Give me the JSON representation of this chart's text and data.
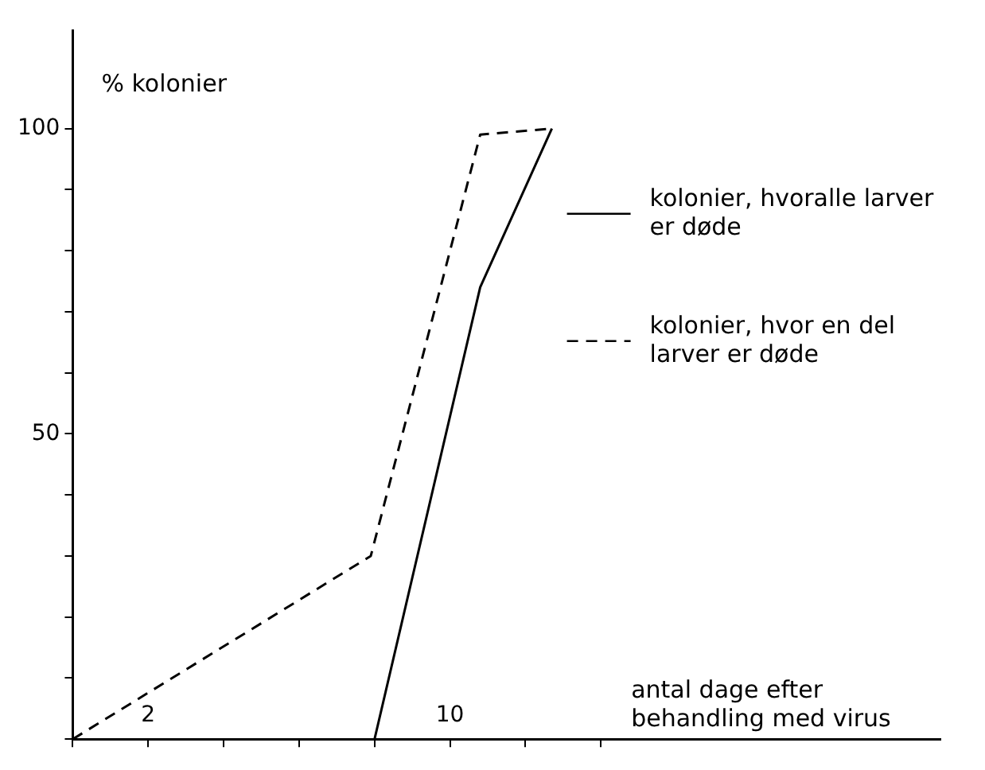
{
  "chart_data": {
    "type": "line",
    "xlabel": "antal dage efter behandling med virus",
    "ylabel": "% kolonier",
    "xlim": [
      0,
      23
    ],
    "xticks": [
      {
        "value": 0,
        "label": null
      },
      {
        "value": 2,
        "label": "2"
      },
      {
        "value": 4,
        "label": null
      },
      {
        "value": 6,
        "label": null
      },
      {
        "value": 8,
        "label": null
      },
      {
        "value": 10,
        "label": "10"
      },
      {
        "value": 12,
        "label": null
      },
      {
        "value": 14,
        "label": null
      }
    ],
    "ylim": [
      0,
      116
    ],
    "yticks": [
      {
        "value": 0,
        "label": null
      },
      {
        "value": 10,
        "label": null
      },
      {
        "value": 20,
        "label": null
      },
      {
        "value": 30,
        "label": null
      },
      {
        "value": 40,
        "label": null
      },
      50,
      {
        "value": 60,
        "label": null
      },
      {
        "value": 70,
        "label": null
      },
      {
        "value": 80,
        "label": null
      },
      {
        "value": 90,
        "label": null
      },
      100
    ],
    "grid": false,
    "legend": "right",
    "marker": "none",
    "series": [
      {
        "name": "kolonier, hvoralle larver er døde",
        "color": "#000000",
        "line_style": "solid",
        "x": [
          8.0,
          10.8,
          12.7
        ],
        "values": [
          0,
          74,
          100
        ]
      },
      {
        "name": "kolonier, hvor en del larver er døde",
        "color": "#000000",
        "line_style": "dashed",
        "x": [
          0,
          7.9,
          10.8,
          12.7
        ],
        "values": [
          0,
          30,
          99,
          100
        ]
      }
    ]
  }
}
